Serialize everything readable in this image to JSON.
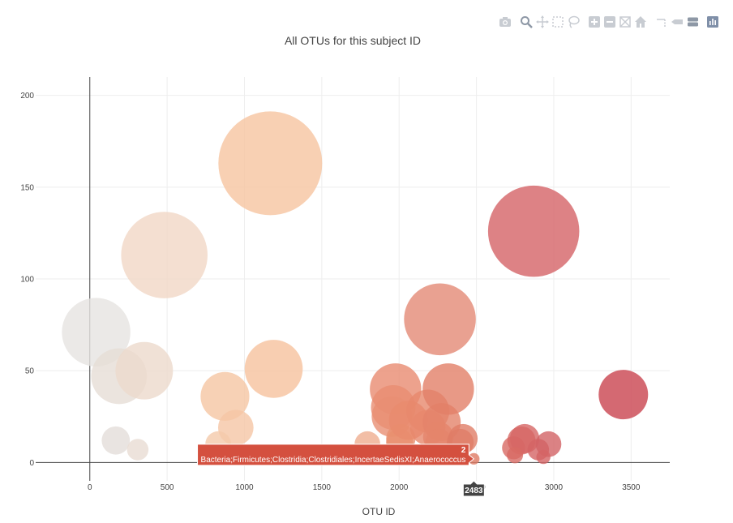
{
  "chart_data": {
    "type": "scatter",
    "subtype": "bubble",
    "title": "All OTUs for this subject ID",
    "xlabel": "OTU ID",
    "ylabel": "",
    "xlim": [
      -350,
      3750
    ],
    "ylim": [
      -10,
      210
    ],
    "x_ticks": [
      0,
      500,
      1000,
      1500,
      2000,
      2500,
      3000,
      3500
    ],
    "y_ticks": [
      0,
      50,
      100,
      150,
      200
    ],
    "grid": true,
    "colorscale": "Reds",
    "points": [
      {
        "x": 41,
        "y": 71,
        "color": "#e6e3e1"
      },
      {
        "x": 189,
        "y": 47,
        "color": "#e6ddd6"
      },
      {
        "x": 352,
        "y": 50,
        "color": "#ecd9cc"
      },
      {
        "x": 482,
        "y": 113,
        "color": "#f1d7c6"
      },
      {
        "x": 1167,
        "y": 163,
        "color": "#f6c4a0"
      },
      {
        "x": 1189,
        "y": 51,
        "color": "#f6c29d"
      },
      {
        "x": 874,
        "y": 36,
        "color": "#f5c5a3"
      },
      {
        "x": 944,
        "y": 19,
        "color": "#f5c6a5"
      },
      {
        "x": 168,
        "y": 12,
        "color": "#e4ddd9"
      },
      {
        "x": 310,
        "y": 7,
        "color": "#e8dcd3"
      },
      {
        "x": 830,
        "y": 10,
        "color": "#f4c9aa"
      },
      {
        "x": 1795,
        "y": 10,
        "color": "#efae90"
      },
      {
        "x": 1977,
        "y": 40,
        "color": "#e88b70"
      },
      {
        "x": 1962,
        "y": 30,
        "color": "#e98d72"
      },
      {
        "x": 1954,
        "y": 25,
        "color": "#e98e73"
      },
      {
        "x": 2011,
        "y": 13,
        "color": "#e9906f"
      },
      {
        "x": 2003,
        "y": 11,
        "color": "#e9906f"
      },
      {
        "x": 2060,
        "y": 23,
        "color": "#e88b6e"
      },
      {
        "x": 2186,
        "y": 28,
        "color": "#e7886d"
      },
      {
        "x": 2186,
        "y": 19,
        "color": "#e7886d"
      },
      {
        "x": 2264,
        "y": 78,
        "color": "#e38a75"
      },
      {
        "x": 2275,
        "y": 22,
        "color": "#e4836a"
      },
      {
        "x": 2318,
        "y": 40,
        "color": "#e28068"
      },
      {
        "x": 2253,
        "y": 14,
        "color": "#e5846b"
      },
      {
        "x": 2257,
        "y": 11,
        "color": "#e5846b"
      },
      {
        "x": 2413,
        "y": 13,
        "color": "#e07d66"
      },
      {
        "x": 2395,
        "y": 11,
        "color": "#e07d66"
      },
      {
        "x": 2483,
        "y": 2,
        "color": "#de7a64"
      },
      {
        "x": 2870,
        "y": 126,
        "color": "#d46367"
      },
      {
        "x": 2740,
        "y": 8,
        "color": "#d86a64"
      },
      {
        "x": 2791,
        "y": 12,
        "color": "#d76864"
      },
      {
        "x": 2812,
        "y": 13,
        "color": "#d66765"
      },
      {
        "x": 2900,
        "y": 7,
        "color": "#d46465"
      },
      {
        "x": 2966,
        "y": 10,
        "color": "#d26365"
      },
      {
        "x": 2749,
        "y": 4,
        "color": "#d86a64"
      },
      {
        "x": 2933,
        "y": 3,
        "color": "#d46465"
      },
      {
        "x": 3450,
        "y": 37,
        "color": "#c9434f"
      }
    ],
    "hover": {
      "x": 2483,
      "y": 2,
      "x_label": "2483",
      "y_label": "2",
      "text": "Bacteria;Firmicutes;Clostridia;Clostridiales;IncertaeSedisXI;Anaerococcus",
      "color": "#d4503f"
    }
  },
  "modebar": {
    "icons": [
      "camera-icon",
      "zoom-icon",
      "pan-icon",
      "box-select-icon",
      "lasso-icon",
      "zoom-in-icon",
      "zoom-out-icon",
      "autoscale-icon",
      "reset-axes-icon",
      "spike-lines-icon",
      "hover-closest-icon",
      "hover-compare-icon",
      "plotly-logo-icon"
    ]
  }
}
